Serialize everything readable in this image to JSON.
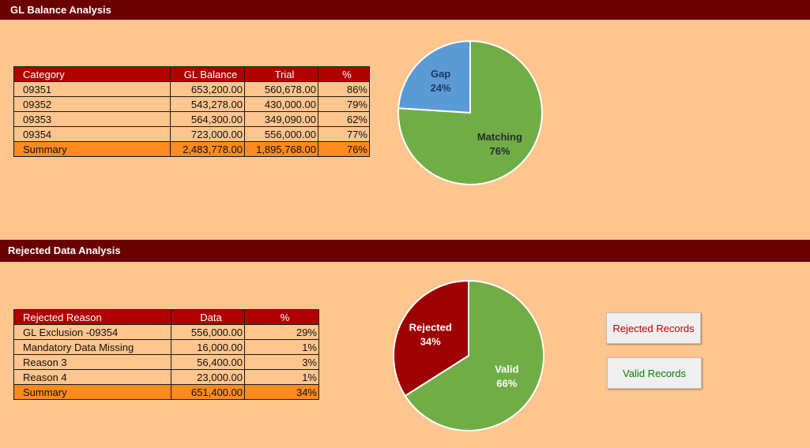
{
  "sections": {
    "gl_title": "GL Balance Analysis",
    "rejected_title": "Rejected Data Analysis"
  },
  "gl_table": {
    "headers": [
      "Category",
      "GL Balance",
      "Trial",
      "%"
    ],
    "rows": [
      [
        "09351",
        "653,200.00",
        "560,678.00",
        "86%"
      ],
      [
        "09352",
        "543,278.00",
        "430,000.00",
        "79%"
      ],
      [
        "09353",
        "564,300.00",
        "349,090.00",
        "62%"
      ],
      [
        "09354",
        "723,000.00",
        "556,000.00",
        "77%"
      ]
    ],
    "summary": [
      "Summary",
      "2,483,778.00",
      "1,895,768.00",
      "76%"
    ]
  },
  "rejected_table": {
    "headers": [
      "Rejected Reason",
      "Data",
      "%"
    ],
    "rows": [
      [
        "GL Exclusion -09354",
        "556,000.00",
        "29%"
      ],
      [
        "Mandatory Data Missing",
        "16,000.00",
        "1%"
      ],
      [
        "Reason 3",
        "56,400.00",
        "3%"
      ],
      [
        "Reason 4",
        "23,000.00",
        "1%"
      ]
    ],
    "summary": [
      "Summary",
      "651,400.00",
      "34%"
    ]
  },
  "buttons": {
    "rejected_records": "Rejected Records",
    "valid_records": "Valid Records"
  },
  "colors": {
    "header_band": "#6B0000",
    "table_header": "#B00000",
    "summary_row": "#FF8A1E",
    "background": "#FFC58E",
    "gap": "#5B9BD5",
    "matching": "#70AD47",
    "rejected": "#9E0000",
    "valid": "#70AD47"
  },
  "chart_data": [
    {
      "type": "pie",
      "slices": [
        {
          "label": "Gap",
          "value": 24,
          "display": "24%",
          "color": "#5B9BD5"
        },
        {
          "label": "Matching",
          "value": 76,
          "display": "76%",
          "color": "#70AD47"
        }
      ]
    },
    {
      "type": "pie",
      "slices": [
        {
          "label": "Rejected",
          "value": 34,
          "display": "34%",
          "color": "#9E0000"
        },
        {
          "label": "Valid",
          "value": 66,
          "display": "66%",
          "color": "#70AD47"
        }
      ]
    }
  ]
}
